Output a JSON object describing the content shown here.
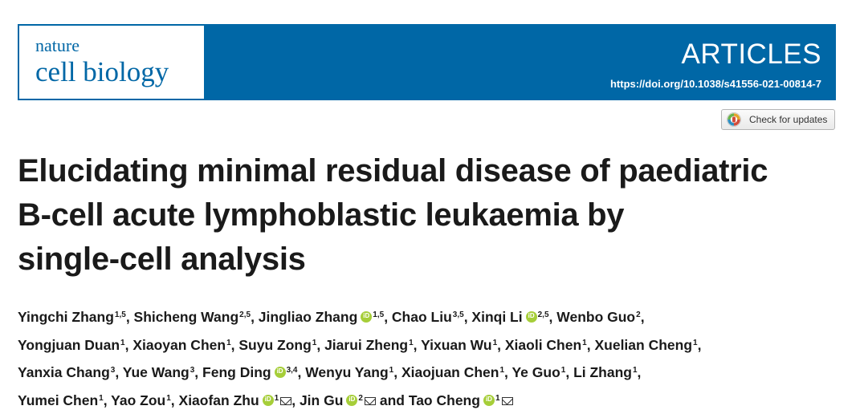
{
  "header": {
    "journal_line1": "nature",
    "journal_line2": "cell biology",
    "section": "ARTICLES",
    "doi": "https://doi.org/10.1038/s41556-021-00814-7",
    "brand_color": "#0067a6"
  },
  "updates_button": {
    "label": "Check for updates",
    "icon": "crossmark-icon"
  },
  "title_lines": [
    "Elucidating minimal residual disease of paediatric",
    "B-cell acute lymphoblastic leukaemia by",
    "single-cell analysis"
  ],
  "author_lines": [
    [
      {
        "name": "Yingchi Zhang",
        "sup": "1,5",
        "orcid": false,
        "email": false,
        "sep": ", "
      },
      {
        "name": "Shicheng Wang",
        "sup": "2,5",
        "orcid": false,
        "email": false,
        "sep": ", "
      },
      {
        "name": "Jingliao Zhang",
        "sup": "1,5",
        "orcid": true,
        "email": false,
        "sep": ", "
      },
      {
        "name": "Chao Liu",
        "sup": "3,5",
        "orcid": false,
        "email": false,
        "sep": ", "
      },
      {
        "name": "Xinqi Li",
        "sup": "2,5",
        "orcid": true,
        "email": false,
        "sep": ", "
      },
      {
        "name": "Wenbo Guo",
        "sup": "2",
        "orcid": false,
        "email": false,
        "sep": ","
      }
    ],
    [
      {
        "name": "Yongjuan Duan",
        "sup": "1",
        "orcid": false,
        "email": false,
        "sep": ", "
      },
      {
        "name": "Xiaoyan Chen",
        "sup": "1",
        "orcid": false,
        "email": false,
        "sep": ", "
      },
      {
        "name": "Suyu Zong",
        "sup": "1",
        "orcid": false,
        "email": false,
        "sep": ", "
      },
      {
        "name": "Jiarui Zheng",
        "sup": "1",
        "orcid": false,
        "email": false,
        "sep": ", "
      },
      {
        "name": "Yixuan Wu",
        "sup": "1",
        "orcid": false,
        "email": false,
        "sep": ", "
      },
      {
        "name": "Xiaoli Chen",
        "sup": "1",
        "orcid": false,
        "email": false,
        "sep": ", "
      },
      {
        "name": "Xuelian Cheng",
        "sup": "1",
        "orcid": false,
        "email": false,
        "sep": ","
      }
    ],
    [
      {
        "name": "Yanxia Chang",
        "sup": "3",
        "orcid": false,
        "email": false,
        "sep": ", "
      },
      {
        "name": "Yue Wang",
        "sup": "3",
        "orcid": false,
        "email": false,
        "sep": ", "
      },
      {
        "name": "Feng Ding",
        "sup": "3,4",
        "orcid": true,
        "email": false,
        "sep": ", "
      },
      {
        "name": "Wenyu Yang",
        "sup": "1",
        "orcid": false,
        "email": false,
        "sep": ", "
      },
      {
        "name": "Xiaojuan Chen",
        "sup": "1",
        "orcid": false,
        "email": false,
        "sep": ", "
      },
      {
        "name": "Ye Guo",
        "sup": "1",
        "orcid": false,
        "email": false,
        "sep": ", "
      },
      {
        "name": "Li Zhang",
        "sup": "1",
        "orcid": false,
        "email": false,
        "sep": ","
      }
    ],
    [
      {
        "name": "Yumei Chen",
        "sup": "1",
        "orcid": false,
        "email": false,
        "sep": ", "
      },
      {
        "name": "Yao Zou",
        "sup": "1",
        "orcid": false,
        "email": false,
        "sep": ", "
      },
      {
        "name": "Xiaofan Zhu",
        "sup": "1",
        "orcid": true,
        "email": true,
        "sep": ", "
      },
      {
        "name": "Jin Gu",
        "sup": "2",
        "orcid": true,
        "email": true,
        "sep": " and "
      },
      {
        "name": "Tao Cheng",
        "sup": "1",
        "orcid": true,
        "email": true,
        "sep": ""
      }
    ]
  ]
}
